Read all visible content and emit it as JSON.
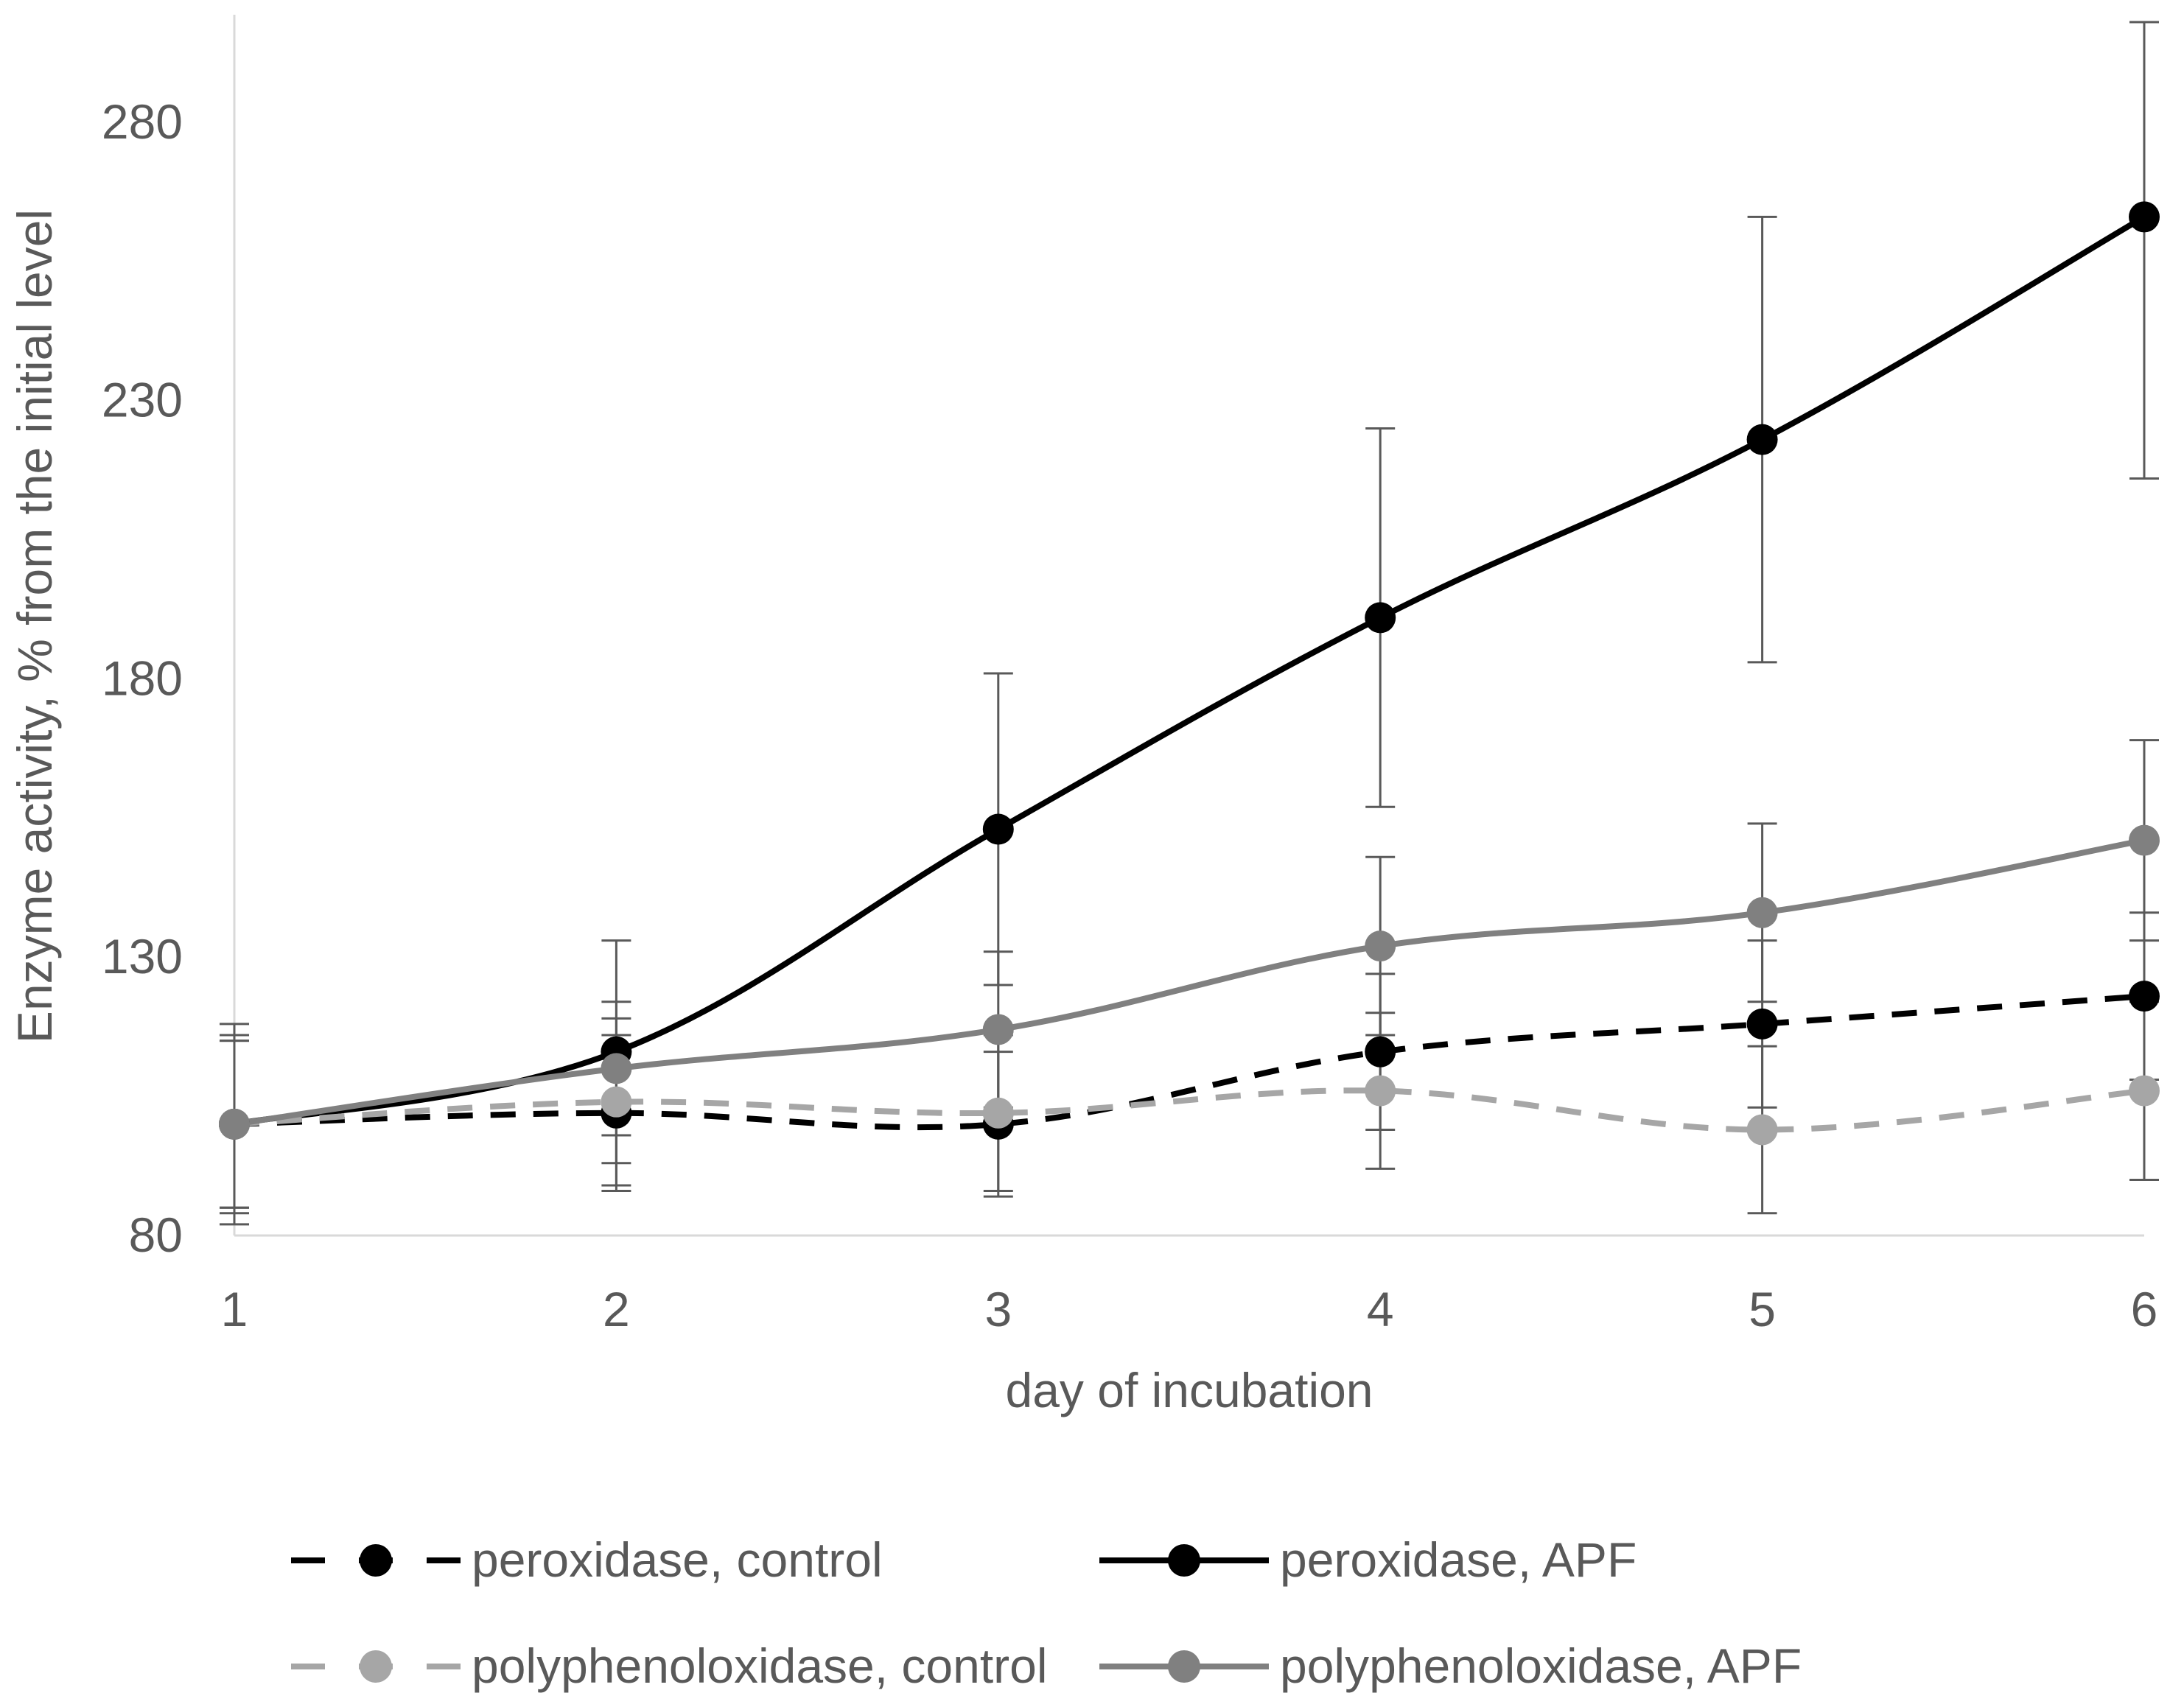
{
  "chart_data": {
    "type": "line",
    "title": "",
    "xlabel": "day of incubation",
    "ylabel": "Enzyme activity, % from the initial level",
    "x": [
      1,
      2,
      3,
      4,
      5,
      6
    ],
    "x_tick_labels": [
      "1",
      "2",
      "3",
      "4",
      "5",
      "6"
    ],
    "y_tick_values": [
      80,
      130,
      180,
      230,
      280
    ],
    "y_tick_labels": [
      "80",
      "130",
      "180",
      "230",
      "280"
    ],
    "xlim": [
      1,
      6
    ],
    "ylim": [
      80,
      298
    ],
    "grid": false,
    "legend_position": "bottom",
    "series": [
      {
        "name": "peroxidase, control",
        "color": "#000000",
        "line_style": "dashed",
        "values": [
          100,
          102,
          100,
          113,
          118,
          123
        ],
        "error": [
          15,
          14,
          13,
          14,
          15,
          15
        ]
      },
      {
        "name": "peroxidase, APF",
        "color": "#000000",
        "line_style": "solid",
        "values": [
          100,
          113,
          153,
          191,
          223,
          263
        ],
        "error": [
          15,
          20,
          28,
          34,
          40,
          47
        ]
      },
      {
        "name": "polyphenoloxidase, control",
        "color": "#a6a6a6",
        "line_style": "dashed",
        "values": [
          100,
          104,
          102,
          106,
          99,
          106
        ],
        "error": [
          16,
          15,
          14,
          14,
          15,
          16
        ]
      },
      {
        "name": "polyphenoloxidase, APF",
        "color": "#808080",
        "line_style": "solid",
        "values": [
          100,
          110,
          117,
          132,
          138,
          151
        ],
        "error": [
          18,
          12,
          14,
          16,
          16,
          18
        ]
      }
    ]
  }
}
